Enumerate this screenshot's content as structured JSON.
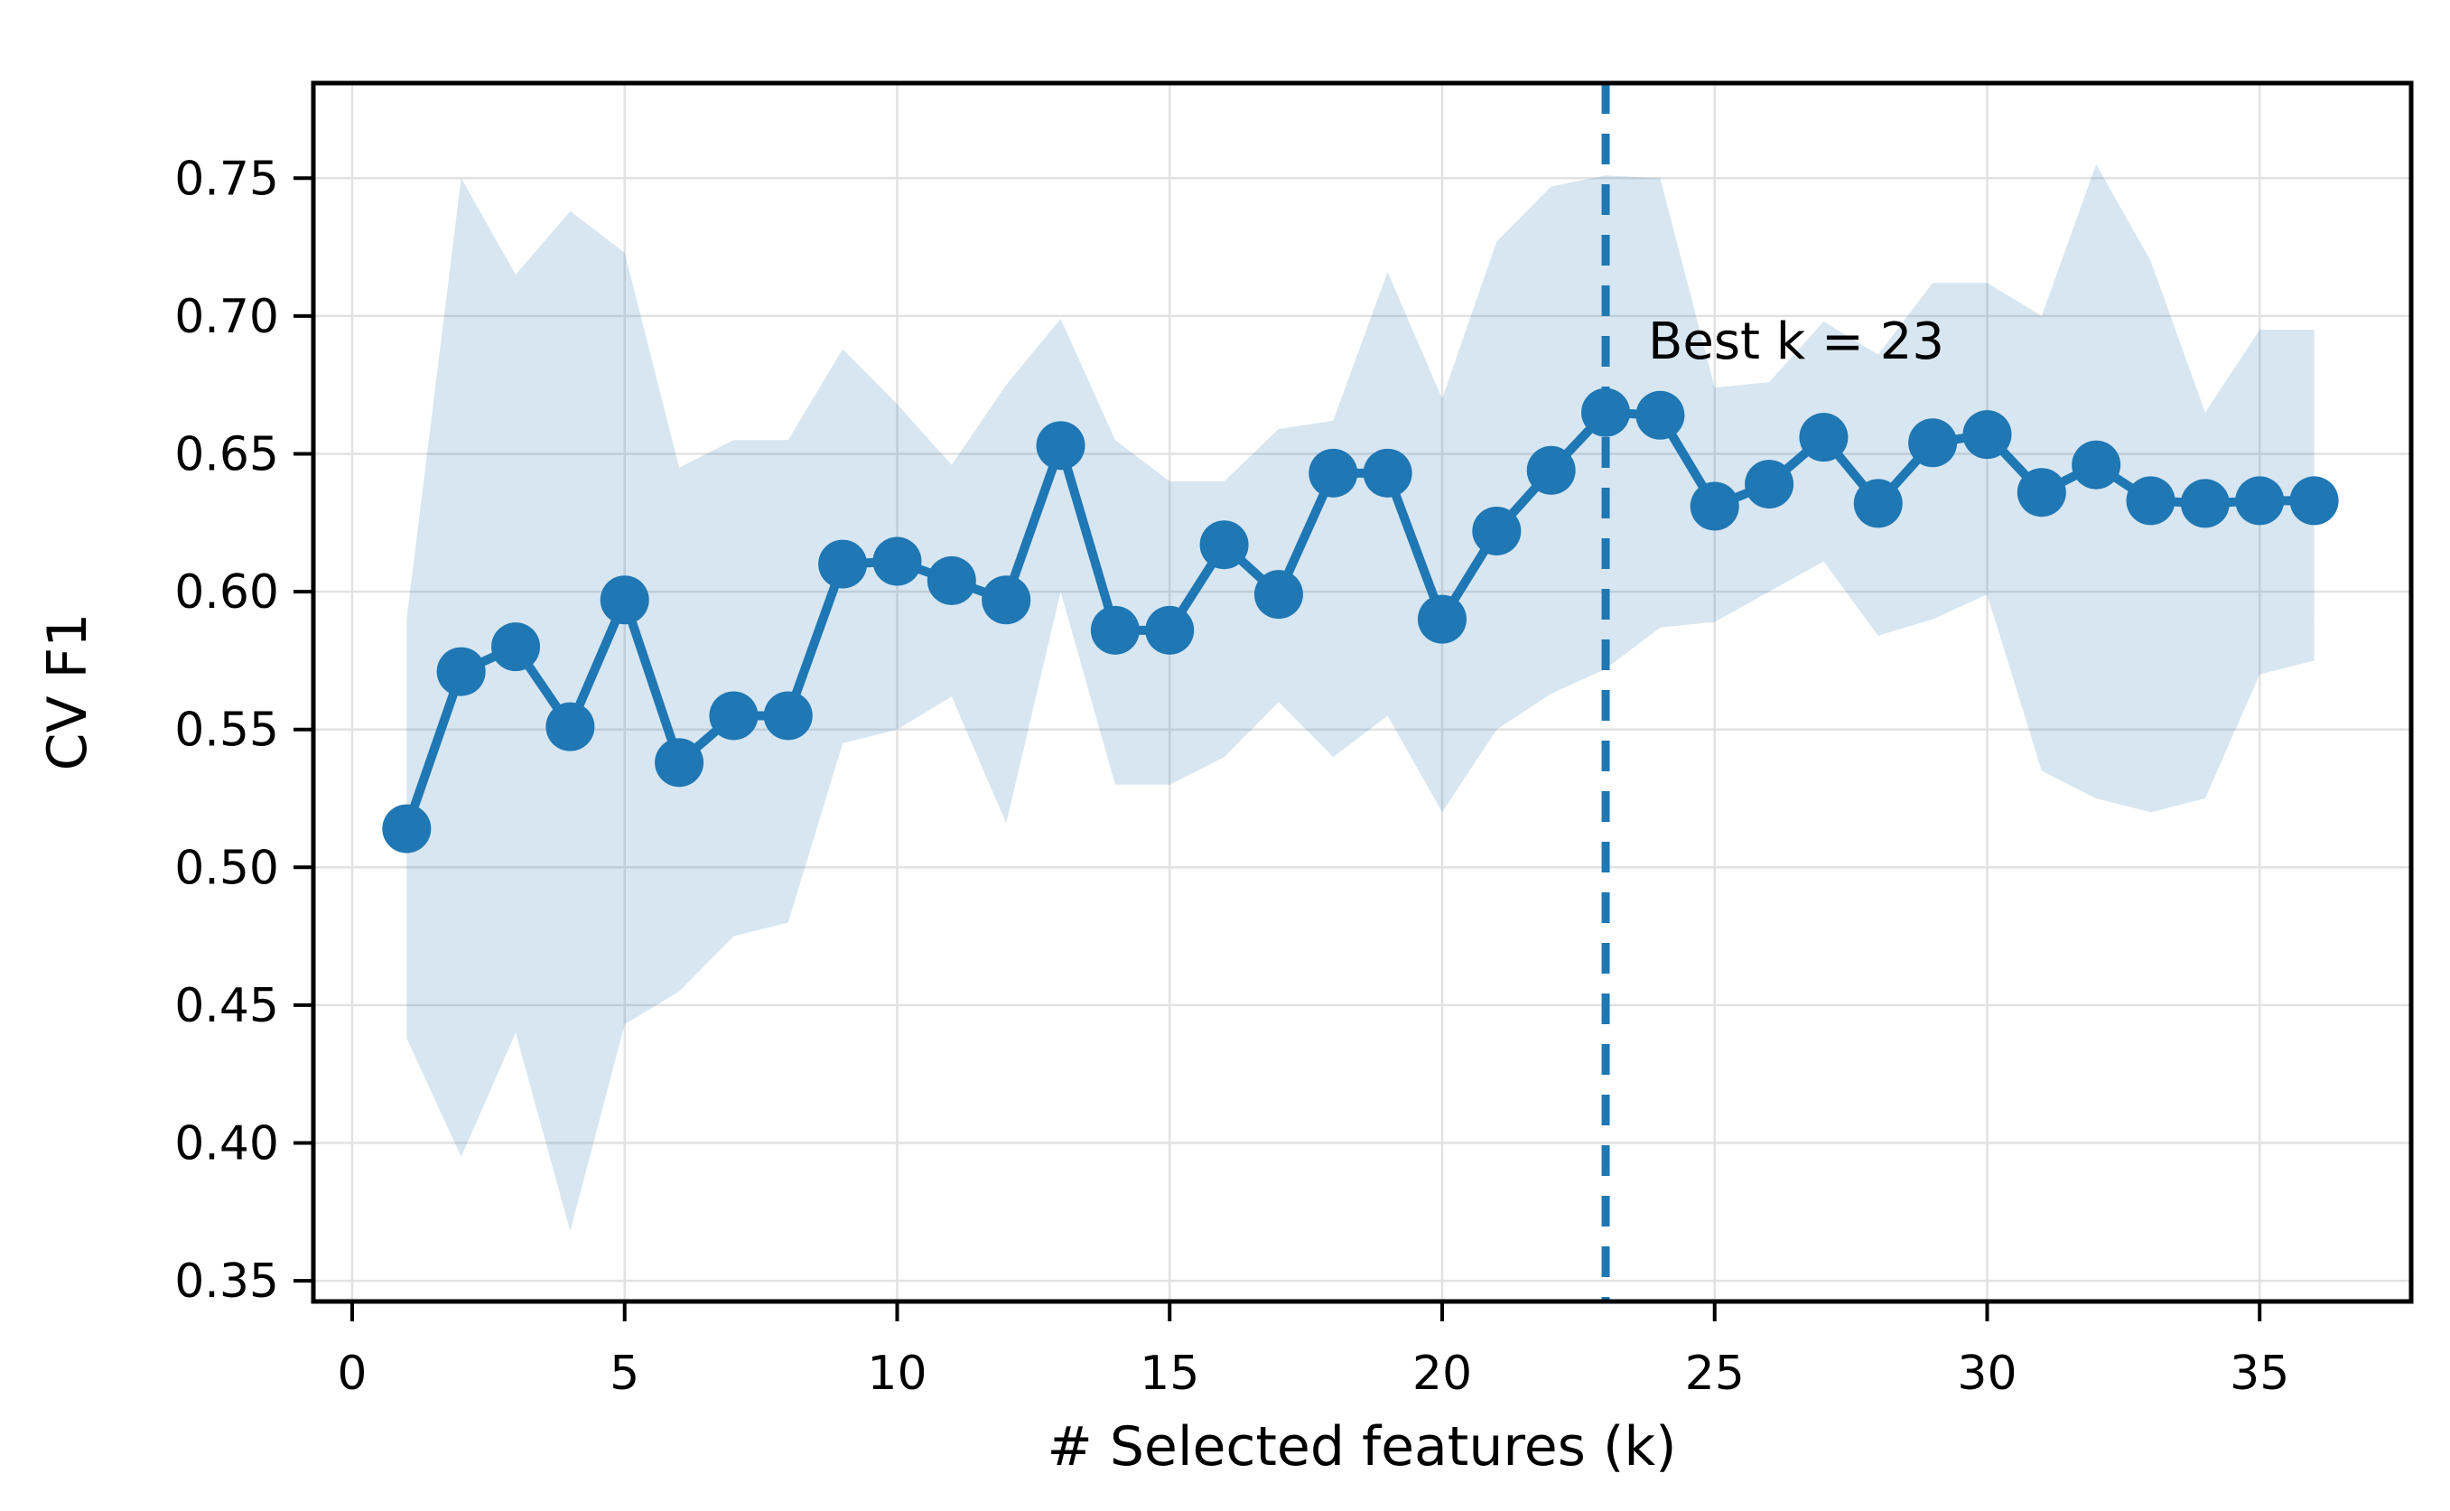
{
  "figure": {
    "xlabel": "# Selected features (k)",
    "ylabel": "CV F1",
    "annotation": "Best k = 23"
  },
  "chart_data": {
    "type": "line",
    "title": "",
    "xlabel": "# Selected features (k)",
    "ylabel": "CV F1",
    "legend_position": "none",
    "grid": true,
    "x": [
      1,
      2,
      3,
      4,
      5,
      6,
      7,
      8,
      9,
      10,
      11,
      12,
      13,
      14,
      15,
      16,
      17,
      18,
      19,
      20,
      21,
      22,
      23,
      24,
      25,
      26,
      27,
      28,
      29,
      30,
      31,
      32,
      33,
      34,
      35,
      36
    ],
    "series": [
      {
        "name": "CV F1 mean",
        "style": "line+markers",
        "values": [
          0.514,
          0.571,
          0.58,
          0.551,
          0.597,
          0.538,
          0.555,
          0.555,
          0.61,
          0.611,
          0.604,
          0.597,
          0.653,
          0.586,
          0.586,
          0.617,
          0.599,
          0.643,
          0.643,
          0.59,
          0.622,
          0.644,
          0.665,
          0.664,
          0.631,
          0.639,
          0.656,
          0.632,
          0.654,
          0.657,
          0.636,
          0.646,
          0.633,
          0.632,
          0.633,
          0.633
        ]
      },
      {
        "name": "band upper",
        "style": "band-edge",
        "values": [
          0.59,
          0.75,
          0.715,
          0.738,
          0.723,
          0.645,
          0.655,
          0.655,
          0.688,
          0.668,
          0.646,
          0.675,
          0.699,
          0.655,
          0.64,
          0.64,
          0.659,
          0.662,
          0.716,
          0.67,
          0.727,
          0.747,
          0.751,
          0.75,
          0.674,
          0.676,
          0.698,
          0.686,
          0.712,
          0.712,
          0.7,
          0.755,
          0.72,
          0.665,
          0.695,
          0.695
        ]
      },
      {
        "name": "band lower",
        "style": "band-edge",
        "values": [
          0.438,
          0.395,
          0.44,
          0.368,
          0.443,
          0.455,
          0.475,
          0.48,
          0.545,
          0.55,
          0.562,
          0.516,
          0.6,
          0.53,
          0.53,
          0.54,
          0.56,
          0.54,
          0.555,
          0.52,
          0.55,
          0.563,
          0.572,
          0.587,
          0.589,
          0.6,
          0.611,
          0.584,
          0.59,
          0.599,
          0.535,
          0.525,
          0.52,
          0.525,
          0.57,
          0.575
        ]
      }
    ],
    "best_k": 23,
    "annotation": {
      "text": "Best k = 23",
      "at_k": 23.8,
      "at_value": 0.692
    },
    "xlim": [
      -0.712,
      37.78
    ],
    "ylim": [
      0.3425,
      0.7845
    ],
    "xticks": [
      0,
      5,
      10,
      15,
      20,
      25,
      30,
      35
    ],
    "yticks": [
      0.35,
      0.4,
      0.45,
      0.5,
      0.55,
      0.6,
      0.65,
      0.7,
      0.75
    ],
    "colors": {
      "line": "#1f77b4",
      "marker": "#1f77b4",
      "best_k_line": "#1f77b4",
      "band_fill": "#1f77b4",
      "band_alpha": 0.18,
      "grid": "#e2e2e2",
      "spine": "#000000",
      "text": "#000000",
      "background": "#ffffff"
    }
  }
}
